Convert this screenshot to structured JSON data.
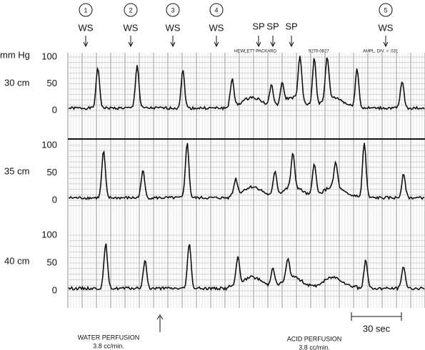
{
  "markers": [
    {
      "number": "1",
      "label": "WS"
    },
    {
      "number": "2",
      "label": "WS"
    },
    {
      "number": "3",
      "label": "WS"
    },
    {
      "number": "4",
      "label": "WS"
    },
    {
      "number": "5",
      "label": "WS"
    }
  ],
  "sp_labels": [
    "SP",
    "SP",
    "SP"
  ],
  "unit": "mm Hg",
  "paper_header": [
    "HEWLETT-PACKARD",
    "9270-0827",
    "AMPL. DIV. = .031"
  ],
  "panels": [
    {
      "label": "30 cm",
      "ticks": [
        "100",
        "50",
        "0"
      ]
    },
    {
      "label": "35 cm",
      "ticks": [
        "100",
        "50",
        "0"
      ]
    },
    {
      "label": "40 cm",
      "ticks": [
        "100",
        "50",
        "0"
      ]
    }
  ],
  "scale_bar": "30 sec",
  "water": {
    "title": "WATER PERFUSION",
    "rate": "3.8 cc/min."
  },
  "acid": {
    "title": "ACID PERFUSION",
    "rate": "3.8 cc/min."
  }
}
